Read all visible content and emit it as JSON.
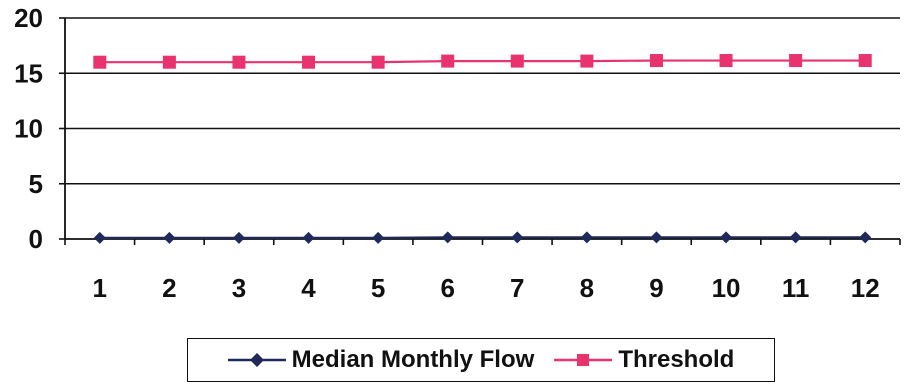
{
  "chart_data": {
    "type": "line",
    "categories": [
      "1",
      "2",
      "3",
      "4",
      "5",
      "6",
      "7",
      "8",
      "9",
      "10",
      "11",
      "12"
    ],
    "series": [
      {
        "name": "Median Monthly Flow",
        "values": [
          0.1,
          0.1,
          0.1,
          0.1,
          0.1,
          0.15,
          0.15,
          0.15,
          0.15,
          0.15,
          0.15,
          0.15
        ],
        "color": "#1f2a5a",
        "marker": "diamond"
      },
      {
        "name": "Threshold",
        "values": [
          16.0,
          16.0,
          16.0,
          16.0,
          16.0,
          16.1,
          16.1,
          16.1,
          16.15,
          16.15,
          16.15,
          16.15
        ],
        "color": "#e8336e",
        "marker": "square"
      }
    ],
    "yticks": [
      "0",
      "5",
      "10",
      "15",
      "20"
    ],
    "ylim": [
      0,
      20
    ],
    "grid": true,
    "legend_position": "bottom"
  }
}
